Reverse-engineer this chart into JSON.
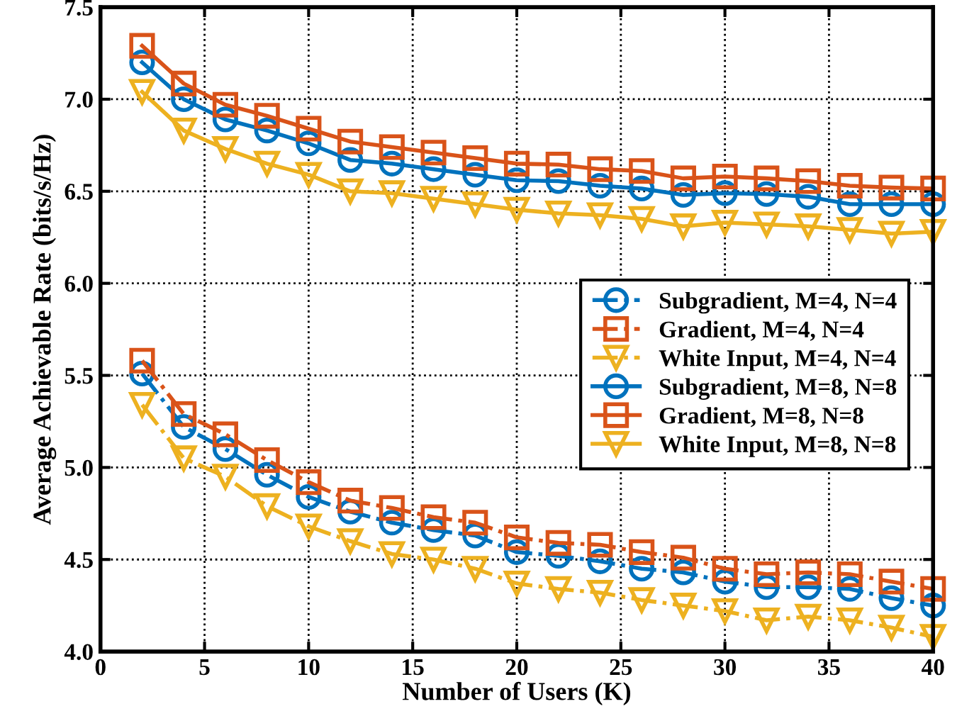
{
  "chart_data": {
    "type": "line",
    "xlabel": "Number of Users (K)",
    "ylabel": "Average Achievable Rate (bits/s/Hz)",
    "x": [
      2,
      4,
      6,
      8,
      10,
      12,
      14,
      16,
      18,
      20,
      22,
      24,
      26,
      28,
      30,
      32,
      34,
      36,
      38,
      40
    ],
    "xlim": [
      0,
      40
    ],
    "xticks": [
      0,
      5,
      10,
      15,
      20,
      25,
      30,
      35,
      40
    ],
    "ylim": [
      4.0,
      7.5
    ],
    "yticks": [
      {
        "value": 4.0,
        "label": "4.0"
      },
      {
        "value": 4.5,
        "label": "4.5"
      },
      {
        "value": 5.0,
        "label": "5.0"
      },
      {
        "value": 5.5,
        "label": "5.5"
      },
      {
        "value": 6.0,
        "label": "6.0"
      },
      {
        "value": 6.5,
        "label": "6.5"
      },
      {
        "value": 7.0,
        "label": "7.0"
      },
      {
        "value": 7.5,
        "label": "7.5"
      }
    ],
    "grid": true,
    "legend": "right",
    "series": [
      {
        "name": "Subgradient, M=4, N=4",
        "color": "#0072bd",
        "marker": "circle",
        "line_style": "dashed",
        "values": [
          5.51,
          5.22,
          5.1,
          4.96,
          4.84,
          4.76,
          4.7,
          4.66,
          4.63,
          4.54,
          4.52,
          4.49,
          4.45,
          4.43,
          4.38,
          4.35,
          4.35,
          4.34,
          4.29,
          4.25
        ]
      },
      {
        "name": "Gradient, M=4, N=4",
        "color": "#d95319",
        "marker": "square",
        "line_style": "dashed",
        "values": [
          5.58,
          5.29,
          5.18,
          5.04,
          4.92,
          4.82,
          4.78,
          4.73,
          4.7,
          4.62,
          4.59,
          4.58,
          4.54,
          4.51,
          4.45,
          4.42,
          4.43,
          4.42,
          4.38,
          4.34
        ]
      },
      {
        "name": "White Input, M=4, N=4",
        "color": "#edb120",
        "marker": "triangle",
        "line_style": "dashed",
        "values": [
          5.34,
          5.05,
          4.95,
          4.79,
          4.68,
          4.6,
          4.53,
          4.5,
          4.45,
          4.37,
          4.34,
          4.32,
          4.28,
          4.25,
          4.22,
          4.17,
          4.19,
          4.17,
          4.13,
          4.08
        ]
      },
      {
        "name": "Subgradient, M=8, N=8",
        "color": "#0072bd",
        "marker": "circle",
        "line_style": "solid",
        "values": [
          7.2,
          7.0,
          6.89,
          6.83,
          6.76,
          6.67,
          6.65,
          6.62,
          6.59,
          6.56,
          6.555,
          6.53,
          6.515,
          6.48,
          6.49,
          6.485,
          6.47,
          6.43,
          6.43,
          6.43
        ]
      },
      {
        "name": "Gradient, M=8, N=8",
        "color": "#d95319",
        "marker": "square",
        "line_style": "solid",
        "values": [
          7.29,
          7.085,
          6.97,
          6.91,
          6.84,
          6.77,
          6.74,
          6.71,
          6.68,
          6.65,
          6.645,
          6.62,
          6.61,
          6.57,
          6.58,
          6.57,
          6.555,
          6.53,
          6.52,
          6.515
        ]
      },
      {
        "name": "White Input, M=8, N=8",
        "color": "#edb120",
        "marker": "triangle",
        "line_style": "solid",
        "values": [
          7.04,
          6.83,
          6.73,
          6.65,
          6.59,
          6.5,
          6.49,
          6.46,
          6.43,
          6.4,
          6.38,
          6.37,
          6.35,
          6.31,
          6.33,
          6.32,
          6.31,
          6.29,
          6.27,
          6.28
        ]
      }
    ]
  }
}
